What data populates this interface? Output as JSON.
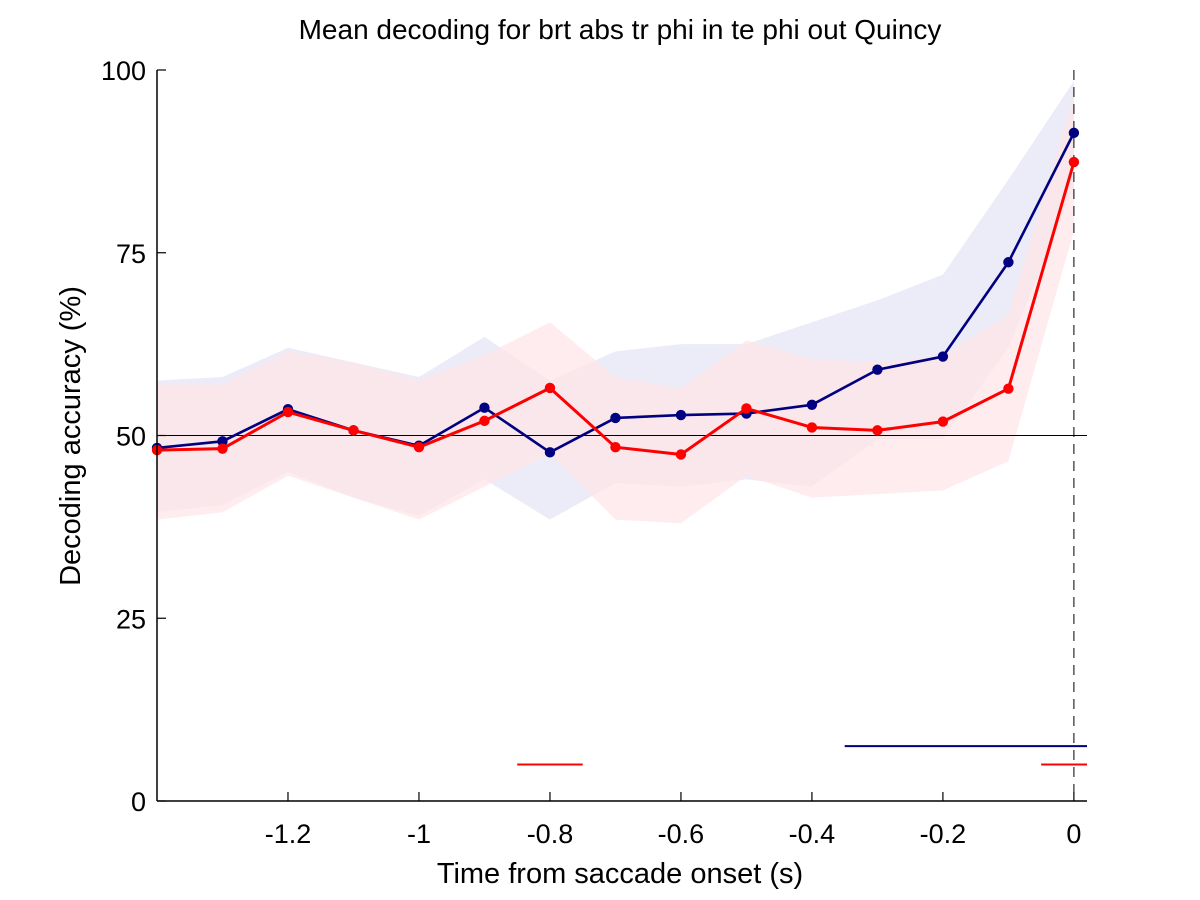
{
  "chart_data": {
    "type": "line",
    "title": "Mean decoding for brt abs tr phi in te phi out  Quincy",
    "xlabel": "Time from saccade onset (s)",
    "ylabel": "Decoding accuracy (%)",
    "xlim": [
      -1.4,
      0.02
    ],
    "ylim": [
      0,
      100
    ],
    "xticks": [
      -1.2,
      -1,
      -0.8,
      -0.6,
      -0.4,
      -0.2,
      0
    ],
    "xtick_labels": [
      "-1.2",
      "-1",
      "-0.8",
      "-0.6",
      "-0.4",
      "-0.2",
      "0"
    ],
    "yticks": [
      0,
      25,
      50,
      75,
      100
    ],
    "ytick_labels": [
      "0",
      "25",
      "50",
      "75",
      "100"
    ],
    "grid": false,
    "x": [
      -1.4,
      -1.3,
      -1.2,
      -1.1,
      -1.0,
      -0.9,
      -0.8,
      -0.7,
      -0.6,
      -0.5,
      -0.4,
      -0.3,
      -0.2,
      -0.1,
      0.0
    ],
    "series": [
      {
        "color": "#000080",
        "band_color": "#e6e6f5",
        "values": [
          48.3,
          49.2,
          53.6,
          50.7,
          48.6,
          53.8,
          47.7,
          52.4,
          52.8,
          53.0,
          54.2,
          59.0,
          60.8,
          73.7,
          91.4
        ],
        "upper": [
          57.5,
          58.0,
          62.0,
          60.0,
          58.0,
          63.5,
          57.5,
          61.5,
          62.5,
          62.5,
          65.5,
          68.5,
          72.0,
          85.0,
          98.5
        ],
        "lower": [
          39.5,
          40.5,
          45.0,
          41.5,
          39.0,
          44.0,
          38.5,
          43.5,
          43.0,
          44.0,
          43.0,
          49.5,
          49.5,
          62.0,
          84.0
        ]
      },
      {
        "color": "#ff0000",
        "band_color": "#fde6e8",
        "values": [
          48.0,
          48.2,
          53.2,
          50.7,
          48.4,
          52.0,
          56.5,
          48.4,
          47.4,
          53.7,
          51.1,
          50.7,
          51.9,
          56.4,
          87.4
        ],
        "upper": [
          57.0,
          57.0,
          61.5,
          60.0,
          57.5,
          61.0,
          65.5,
          58.0,
          56.5,
          63.0,
          60.5,
          60.0,
          61.0,
          66.5,
          96.5
        ],
        "lower": [
          38.5,
          39.5,
          44.5,
          41.5,
          38.5,
          43.0,
          47.5,
          38.5,
          38.0,
          44.5,
          41.5,
          42.0,
          42.5,
          46.5,
          78.0
        ]
      }
    ],
    "reference_lines": [
      {
        "orientation": "horizontal",
        "value": 50,
        "style": "solid",
        "color": "#000000"
      },
      {
        "orientation": "vertical",
        "value": 0,
        "style": "dashed",
        "color": "#000000"
      }
    ],
    "significance_bars": [
      {
        "color": "#ff0000",
        "x_start": -0.85,
        "x_end": -0.75,
        "y": 5
      },
      {
        "color": "#000080",
        "x_start": -0.35,
        "x_end": 0.02,
        "y": 7.5
      },
      {
        "color": "#ff0000",
        "x_start": -0.05,
        "x_end": 0.02,
        "y": 5
      }
    ]
  }
}
